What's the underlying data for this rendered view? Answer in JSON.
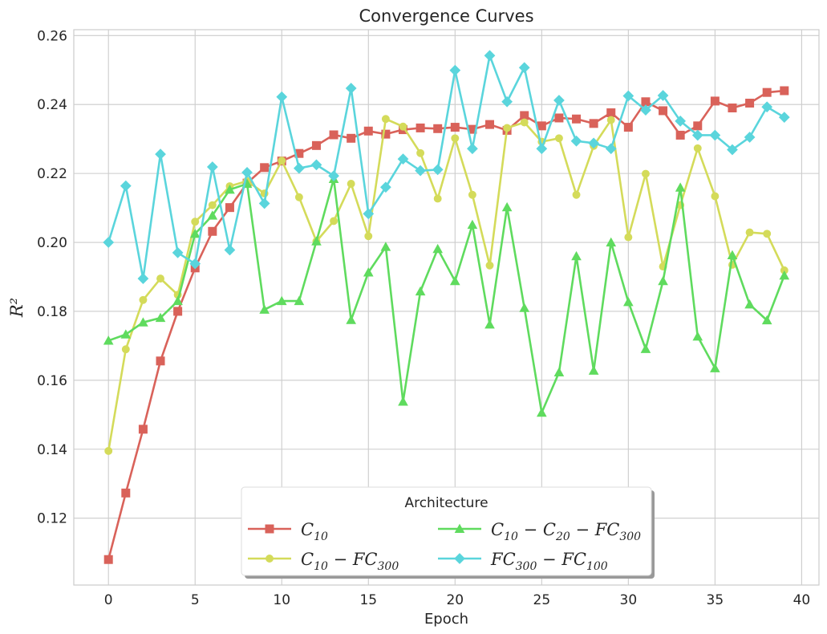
{
  "chart_data": {
    "type": "line",
    "title": "Convergence Curves",
    "xlabel": "Epoch",
    "ylabel": "R²",
    "xlim": [
      -2,
      41
    ],
    "ylim": [
      0.1006,
      0.2617
    ],
    "xticks": [
      0,
      5,
      10,
      15,
      20,
      25,
      30,
      35,
      40
    ],
    "yticks": [
      0.12,
      0.14,
      0.16,
      0.18,
      0.2,
      0.22,
      0.24,
      0.26
    ],
    "ytick_labels": [
      "0.12",
      "0.14",
      "0.16",
      "0.18",
      "0.20",
      "0.22",
      "0.24",
      "0.26"
    ],
    "grid": true,
    "legend": {
      "title": "Architecture",
      "placement": "lower-center",
      "columns": 2
    },
    "x": [
      0,
      1,
      2,
      3,
      4,
      5,
      6,
      7,
      8,
      9,
      10,
      11,
      12,
      13,
      14,
      15,
      16,
      17,
      18,
      19,
      20,
      21,
      22,
      23,
      24,
      25,
      26,
      27,
      28,
      29,
      30,
      31,
      32,
      33,
      34,
      35,
      36,
      37,
      38,
      39
    ],
    "series": [
      {
        "name": "C_{10}",
        "legend_parts": [
          [
            "C",
            "main"
          ],
          [
            "10",
            "sub"
          ]
        ],
        "color": "#d9625a",
        "marker": "square",
        "values": [
          0.108,
          0.1273,
          0.1458,
          0.1656,
          0.18,
          0.1926,
          0.2032,
          0.2101,
          0.2172,
          0.2217,
          0.2236,
          0.2258,
          0.2281,
          0.2312,
          0.2302,
          0.2323,
          0.2314,
          0.2327,
          0.2332,
          0.233,
          0.2334,
          0.2328,
          0.2342,
          0.2325,
          0.2368,
          0.2338,
          0.2361,
          0.2358,
          0.2345,
          0.2376,
          0.2334,
          0.2408,
          0.2382,
          0.2311,
          0.2338,
          0.241,
          0.239,
          0.2404,
          0.2435,
          0.244
        ]
      },
      {
        "name": "C_{10}-FC_{300}",
        "legend_parts": [
          [
            "C",
            "main"
          ],
          [
            "10",
            "sub"
          ],
          [
            " − ",
            "op"
          ],
          [
            "FC",
            "main"
          ],
          [
            "300",
            "sub"
          ]
        ],
        "color": "#d4db5a",
        "marker": "circle",
        "values": [
          0.1395,
          0.169,
          0.1833,
          0.1895,
          0.1848,
          0.206,
          0.2108,
          0.2163,
          0.2178,
          0.2142,
          0.2237,
          0.2131,
          0.2003,
          0.2062,
          0.217,
          0.2018,
          0.2358,
          0.2336,
          0.2259,
          0.2127,
          0.2302,
          0.2138,
          0.1933,
          0.2332,
          0.2348,
          0.2292,
          0.2302,
          0.2138,
          0.228,
          0.2355,
          0.2015,
          0.2199,
          0.193,
          0.2108,
          0.2273,
          0.2134,
          0.1935,
          0.2029,
          0.2025,
          0.1919
        ]
      },
      {
        "name": "C_{10}-C_{20}-FC_{300}",
        "legend_parts": [
          [
            "C",
            "main"
          ],
          [
            "10",
            "sub"
          ],
          [
            " − ",
            "op"
          ],
          [
            "C",
            "main"
          ],
          [
            "20",
            "sub"
          ],
          [
            " − ",
            "op"
          ],
          [
            "FC",
            "main"
          ],
          [
            "300",
            "sub"
          ]
        ],
        "color": "#5fdb5e",
        "marker": "triangle",
        "values": [
          0.1715,
          0.1733,
          0.1768,
          0.1781,
          0.183,
          0.2025,
          0.2078,
          0.2153,
          0.217,
          0.1805,
          0.183,
          0.183,
          0.2003,
          0.2184,
          0.1775,
          0.1913,
          0.1987,
          0.1538,
          0.1858,
          0.1981,
          0.1888,
          0.2051,
          0.1762,
          0.2102,
          0.181,
          0.1506,
          0.1623,
          0.196,
          0.1628,
          0.2,
          0.1827,
          0.1691,
          0.1888,
          0.2159,
          0.1727,
          0.1635,
          0.1963,
          0.182,
          0.1774,
          0.1904
        ]
      },
      {
        "name": "FC_{300}-FC_{100}",
        "legend_parts": [
          [
            "FC",
            "main"
          ],
          [
            "300",
            "sub"
          ],
          [
            " − ",
            "op"
          ],
          [
            "FC",
            "main"
          ],
          [
            "100",
            "sub"
          ]
        ],
        "color": "#5ad5dc",
        "marker": "diamond",
        "values": [
          0.2,
          0.2164,
          0.1895,
          0.2256,
          0.197,
          0.1938,
          0.2219,
          0.1978,
          0.2203,
          0.2113,
          0.2422,
          0.2215,
          0.2225,
          0.2193,
          0.2447,
          0.2083,
          0.216,
          0.2242,
          0.2208,
          0.2211,
          0.2499,
          0.2272,
          0.2542,
          0.2408,
          0.2507,
          0.2272,
          0.2412,
          0.2294,
          0.2288,
          0.2272,
          0.2425,
          0.2384,
          0.2426,
          0.2352,
          0.2311,
          0.2311,
          0.2269,
          0.2305,
          0.2393,
          0.2363
        ]
      }
    ]
  }
}
